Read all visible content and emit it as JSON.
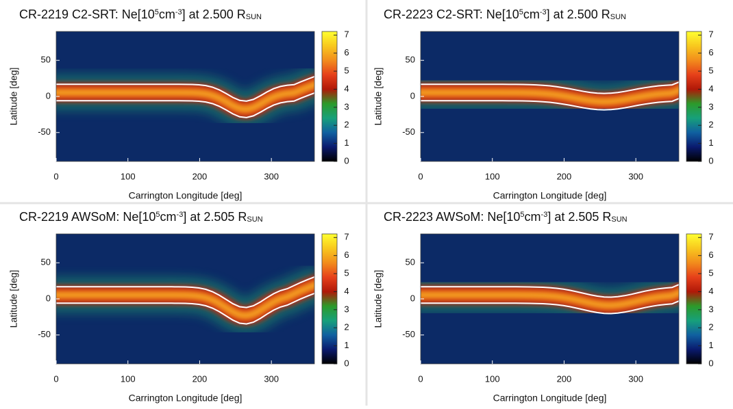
{
  "chart_data": [
    {
      "type": "heatmap",
      "title": [
        {
          "text": "CR-2219 C2-SRT: Ne[10"
        },
        {
          "text": "5",
          "shift": "sup"
        },
        {
          "text": "cm"
        },
        {
          "text": "-3",
          "shift": "sup"
        },
        {
          "text": "] at 2.500 R"
        },
        {
          "text": "SUN",
          "shift": "sub"
        }
      ],
      "xlabel": "Carrington Longitude [deg]",
      "ylabel": "Latitude [deg]",
      "xlim": [
        0,
        360
      ],
      "xticks": [
        0,
        100,
        200,
        300
      ],
      "ylim": [
        -90,
        90
      ],
      "yticks": [
        -50,
        0,
        50
      ],
      "clim": [
        0,
        7.2
      ],
      "cticks": [
        0,
        1,
        2,
        3,
        4,
        5,
        6,
        7
      ],
      "colormap": [
        "#000000",
        "#0a1a6e",
        "#1060a0",
        "#17a07a",
        "#2c9a2a",
        "#b01808",
        "#e6401a",
        "#f28c1c",
        "#f8c81e",
        "#ffff30"
      ]
    },
    {
      "type": "heatmap",
      "title": [
        {
          "text": "CR-2223 C2-SRT: Ne[10"
        },
        {
          "text": "5",
          "shift": "sup"
        },
        {
          "text": "cm"
        },
        {
          "text": "-3",
          "shift": "sup"
        },
        {
          "text": "] at 2.500 R"
        },
        {
          "text": "SUN",
          "shift": "sub"
        }
      ],
      "xlabel": "Carrington Longitude [deg]",
      "ylabel": "Latitude [deg]",
      "xlim": [
        0,
        360
      ],
      "xticks": [
        0,
        100,
        200,
        300
      ],
      "ylim": [
        -90,
        90
      ],
      "yticks": [
        -50,
        0,
        50
      ],
      "clim": [
        0,
        7.2
      ],
      "cticks": [
        0,
        1,
        2,
        3,
        4,
        5,
        6,
        7
      ],
      "colormap": [
        "#000000",
        "#0a1a6e",
        "#1060a0",
        "#17a07a",
        "#2c9a2a",
        "#b01808",
        "#e6401a",
        "#f28c1c",
        "#f8c81e",
        "#ffff30"
      ]
    },
    {
      "type": "heatmap",
      "title": [
        {
          "text": "CR-2219 AWSoM: Ne[10"
        },
        {
          "text": "5",
          "shift": "sup"
        },
        {
          "text": "cm"
        },
        {
          "text": "-3",
          "shift": "sup"
        },
        {
          "text": "] at 2.505 R"
        },
        {
          "text": "SUN",
          "shift": "sub"
        }
      ],
      "xlabel": "Carrington Longitude [deg]",
      "ylabel": "Latitude [deg]",
      "xlim": [
        0,
        360
      ],
      "xticks": [
        0,
        100,
        200,
        300
      ],
      "ylim": [
        -90,
        90
      ],
      "yticks": [
        -50,
        0,
        50
      ],
      "clim": [
        0,
        7.2
      ],
      "cticks": [
        0,
        1,
        2,
        3,
        4,
        5,
        6,
        7
      ],
      "colormap": [
        "#000000",
        "#0a1a6e",
        "#1060a0",
        "#17a07a",
        "#2c9a2a",
        "#b01808",
        "#e6401a",
        "#f28c1c",
        "#f8c81e",
        "#ffff30"
      ]
    },
    {
      "type": "heatmap",
      "title": [
        {
          "text": "CR-2223 AWSoM: Ne[10"
        },
        {
          "text": "5",
          "shift": "sup"
        },
        {
          "text": "cm"
        },
        {
          "text": "-3",
          "shift": "sup"
        },
        {
          "text": "] at 2.505 R"
        },
        {
          "text": "SUN",
          "shift": "sub"
        }
      ],
      "xlabel": "Carrington Longitude [deg]",
      "ylabel": "Latitude [deg]",
      "xlim": [
        0,
        360
      ],
      "xticks": [
        0,
        100,
        200,
        300
      ],
      "ylim": [
        -90,
        90
      ],
      "yticks": [
        -50,
        0,
        50
      ],
      "clim": [
        0,
        7.2
      ],
      "cticks": [
        0,
        1,
        2,
        3,
        4,
        5,
        6,
        7
      ],
      "colormap": [
        "#000000",
        "#0a1a6e",
        "#1060a0",
        "#17a07a",
        "#2c9a2a",
        "#b01808",
        "#e6401a",
        "#f28c1c",
        "#f8c81e",
        "#ffff30"
      ]
    }
  ]
}
